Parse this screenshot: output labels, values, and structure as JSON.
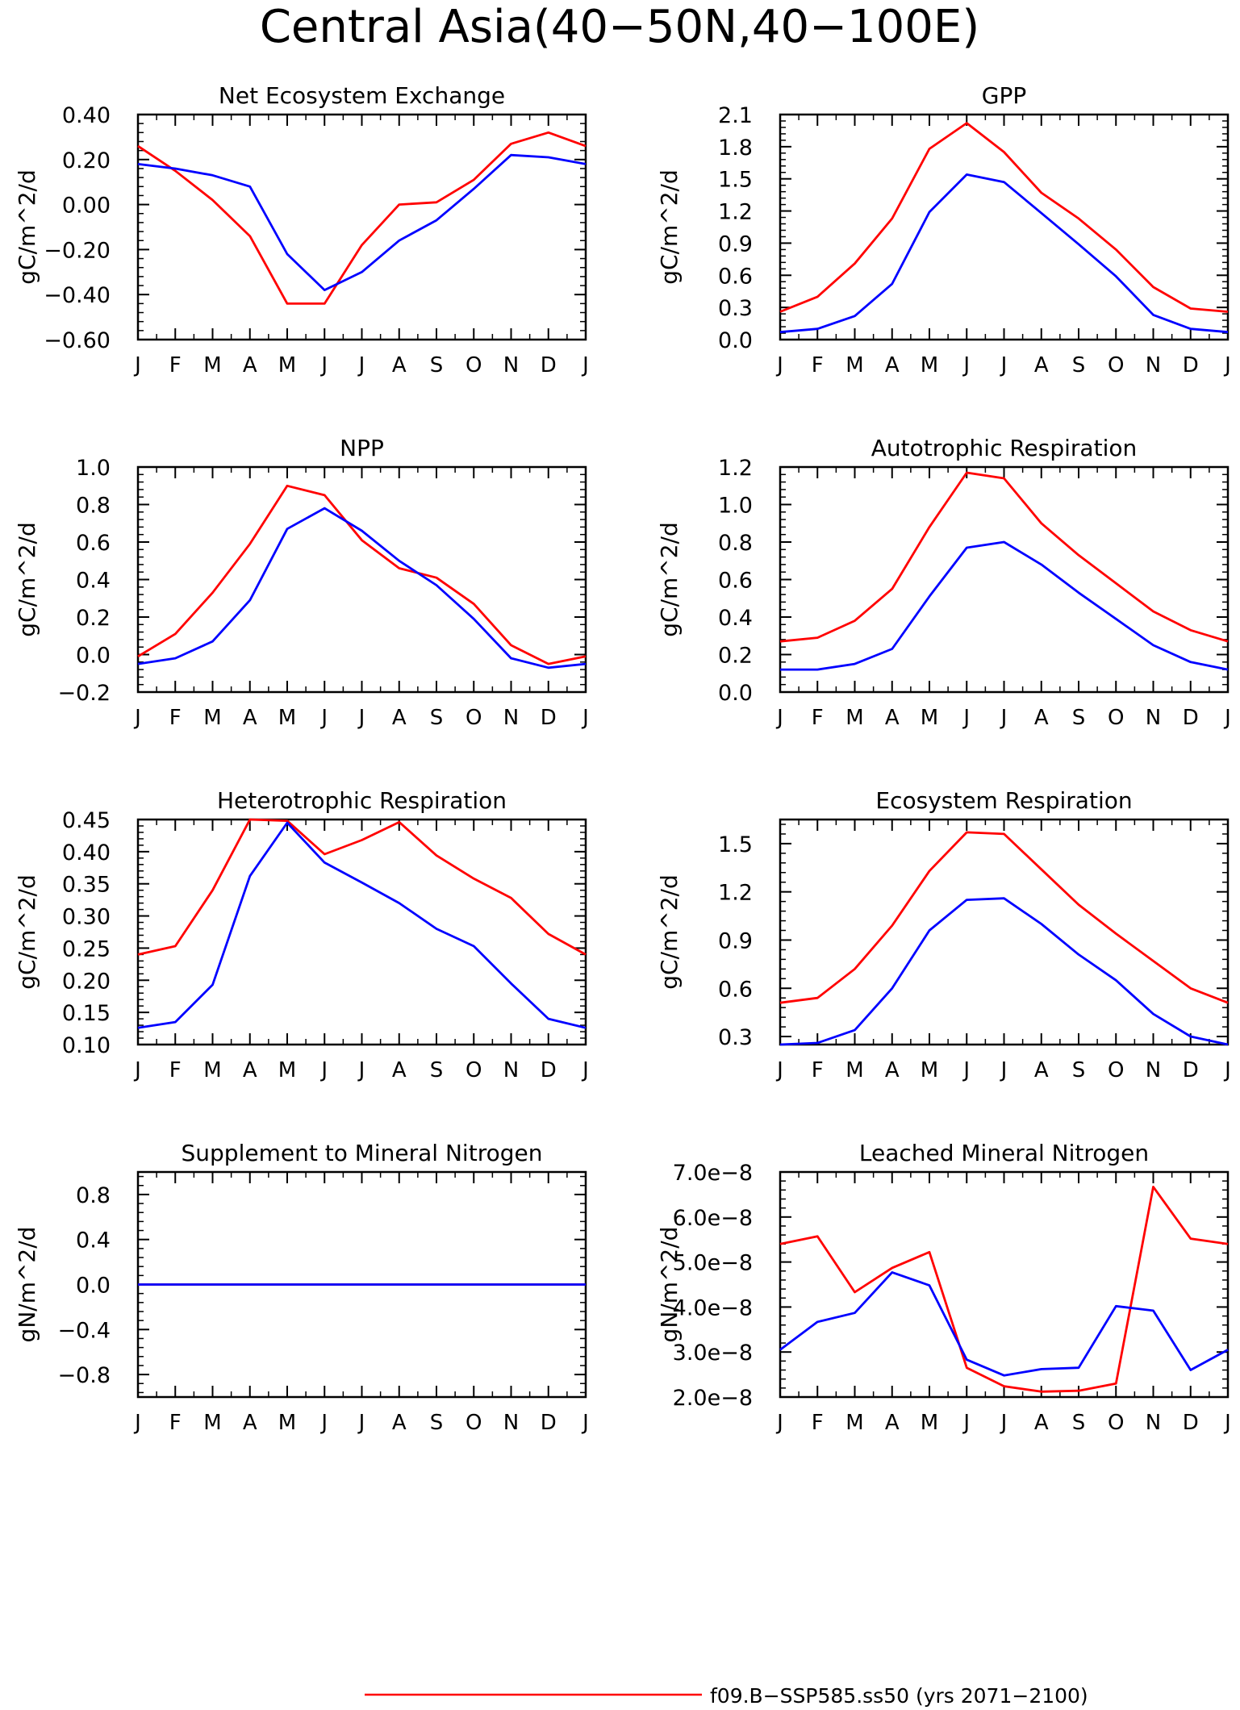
{
  "figure_title": "Central Asia(40−50N,40−100E)",
  "legend": [
    {
      "label": "f09.B−SSP585.ss50 (yrs 2071−2100)",
      "color": "#ff0000"
    }
  ],
  "colors": {
    "red": "#ff0000",
    "blue": "#0000ff"
  },
  "chart_data": [
    {
      "type": "line",
      "title": "Net Ecosystem Exchange",
      "ylabel": "gC/m^2/d",
      "categories": [
        "J",
        "F",
        "M",
        "A",
        "M",
        "J",
        "J",
        "A",
        "S",
        "O",
        "N",
        "D",
        "J"
      ],
      "ylim": [
        -0.6,
        0.4
      ],
      "yticks": [
        -0.6,
        -0.4,
        -0.2,
        0.0,
        0.2,
        0.4
      ],
      "yticklabels": [
        "−0.60",
        "−0.40",
        "−0.20",
        "0.00",
        "0.20",
        "0.40"
      ],
      "series": [
        {
          "color": "red",
          "values": [
            0.26,
            0.15,
            0.02,
            -0.14,
            -0.44,
            -0.44,
            -0.18,
            0.0,
            0.01,
            0.11,
            0.27,
            0.32,
            0.26
          ]
        },
        {
          "color": "blue",
          "values": [
            0.18,
            0.16,
            0.13,
            0.08,
            -0.22,
            -0.38,
            -0.3,
            -0.16,
            -0.07,
            0.07,
            0.22,
            0.21,
            0.18
          ]
        }
      ]
    },
    {
      "type": "line",
      "title": "GPP",
      "ylabel": "gC/m^2/d",
      "categories": [
        "J",
        "F",
        "M",
        "A",
        "M",
        "J",
        "J",
        "A",
        "S",
        "O",
        "N",
        "D",
        "J"
      ],
      "ylim": [
        0.0,
        2.1
      ],
      "yticks": [
        0.0,
        0.3,
        0.6,
        0.9,
        1.2,
        1.5,
        1.8,
        2.1
      ],
      "yticklabels": [
        "0.0",
        "0.3",
        "0.6",
        "0.9",
        "1.2",
        "1.5",
        "1.8",
        "2.1"
      ],
      "series": [
        {
          "color": "red",
          "values": [
            0.26,
            0.4,
            0.71,
            1.13,
            1.78,
            2.02,
            1.75,
            1.37,
            1.13,
            0.84,
            0.49,
            0.29,
            0.26
          ]
        },
        {
          "color": "blue",
          "values": [
            0.07,
            0.1,
            0.22,
            0.52,
            1.19,
            1.54,
            1.47,
            1.18,
            0.89,
            0.59,
            0.23,
            0.1,
            0.07
          ]
        }
      ]
    },
    {
      "type": "line",
      "title": "NPP",
      "ylabel": "gC/m^2/d",
      "categories": [
        "J",
        "F",
        "M",
        "A",
        "M",
        "J",
        "J",
        "A",
        "S",
        "O",
        "N",
        "D",
        "J"
      ],
      "ylim": [
        -0.2,
        1.0
      ],
      "yticks": [
        -0.2,
        0.0,
        0.2,
        0.4,
        0.6,
        0.8,
        1.0
      ],
      "yticklabels": [
        "−0.2",
        "0.0",
        "0.2",
        "0.4",
        "0.6",
        "0.8",
        "1.0"
      ],
      "series": [
        {
          "color": "red",
          "values": [
            -0.01,
            0.11,
            0.33,
            0.59,
            0.9,
            0.85,
            0.61,
            0.46,
            0.41,
            0.27,
            0.05,
            -0.05,
            -0.01
          ]
        },
        {
          "color": "blue",
          "values": [
            -0.05,
            -0.02,
            0.07,
            0.29,
            0.67,
            0.78,
            0.66,
            0.5,
            0.37,
            0.19,
            -0.02,
            -0.07,
            -0.05
          ]
        }
      ]
    },
    {
      "type": "line",
      "title": "Autotrophic Respiration",
      "ylabel": "gC/m^2/d",
      "categories": [
        "J",
        "F",
        "M",
        "A",
        "M",
        "J",
        "J",
        "A",
        "S",
        "O",
        "N",
        "D",
        "J"
      ],
      "ylim": [
        0.0,
        1.2
      ],
      "yticks": [
        0.0,
        0.2,
        0.4,
        0.6,
        0.8,
        1.0,
        1.2
      ],
      "yticklabels": [
        "0.0",
        "0.2",
        "0.4",
        "0.6",
        "0.8",
        "1.0",
        "1.2"
      ],
      "series": [
        {
          "color": "red",
          "values": [
            0.27,
            0.29,
            0.38,
            0.55,
            0.88,
            1.17,
            1.14,
            0.9,
            0.73,
            0.58,
            0.43,
            0.33,
            0.27
          ]
        },
        {
          "color": "blue",
          "values": [
            0.12,
            0.12,
            0.15,
            0.23,
            0.51,
            0.77,
            0.8,
            0.68,
            0.53,
            0.39,
            0.25,
            0.16,
            0.12
          ]
        }
      ]
    },
    {
      "type": "line",
      "title": "Heterotrophic Respiration",
      "ylabel": "gC/m^2/d",
      "categories": [
        "J",
        "F",
        "M",
        "A",
        "M",
        "J",
        "J",
        "A",
        "S",
        "O",
        "N",
        "D",
        "J"
      ],
      "ylim": [
        0.1,
        0.45
      ],
      "yticks": [
        0.1,
        0.15,
        0.2,
        0.25,
        0.3,
        0.35,
        0.4,
        0.45
      ],
      "yticklabels": [
        "0.10",
        "0.15",
        "0.20",
        "0.25",
        "0.30",
        "0.35",
        "0.40",
        "0.45"
      ],
      "series": [
        {
          "color": "red",
          "values": [
            0.24,
            0.253,
            0.34,
            0.45,
            0.448,
            0.396,
            0.418,
            0.446,
            0.394,
            0.358,
            0.328,
            0.272,
            0.24
          ]
        },
        {
          "color": "blue",
          "values": [
            0.126,
            0.135,
            0.193,
            0.362,
            0.445,
            0.383,
            0.352,
            0.32,
            0.28,
            0.253,
            0.195,
            0.14,
            0.126
          ]
        }
      ]
    },
    {
      "type": "line",
      "title": "Ecosystem Respiration",
      "ylabel": "gC/m^2/d",
      "categories": [
        "J",
        "F",
        "M",
        "A",
        "M",
        "J",
        "J",
        "A",
        "S",
        "O",
        "N",
        "D",
        "J"
      ],
      "ylim": [
        0.25,
        1.65
      ],
      "yticks": [
        0.3,
        0.6,
        0.9,
        1.2,
        1.5
      ],
      "yticklabels": [
        "0.3",
        "0.6",
        "0.9",
        "1.2",
        "1.5"
      ],
      "series": [
        {
          "color": "red",
          "values": [
            0.51,
            0.54,
            0.72,
            0.99,
            1.33,
            1.57,
            1.56,
            1.34,
            1.12,
            0.94,
            0.77,
            0.6,
            0.51
          ]
        },
        {
          "color": "blue",
          "values": [
            0.25,
            0.26,
            0.34,
            0.6,
            0.96,
            1.15,
            1.16,
            1.0,
            0.81,
            0.65,
            0.44,
            0.3,
            0.25
          ]
        }
      ]
    },
    {
      "type": "line",
      "title": "Supplement to Mineral Nitrogen",
      "ylabel": "gN/m^2/d",
      "categories": [
        "J",
        "F",
        "M",
        "A",
        "M",
        "J",
        "J",
        "A",
        "S",
        "O",
        "N",
        "D",
        "J"
      ],
      "ylim": [
        -1.0,
        1.0
      ],
      "yticks": [
        -0.8,
        -0.4,
        0.0,
        0.4,
        0.8
      ],
      "yticklabels": [
        "−0.8",
        "−0.4",
        "0.0",
        "0.4",
        "0.8"
      ],
      "series": [
        {
          "color": "red",
          "values": [
            0,
            0,
            0,
            0,
            0,
            0,
            0,
            0,
            0,
            0,
            0,
            0,
            0
          ]
        },
        {
          "color": "blue",
          "values": [
            0,
            0,
            0,
            0,
            0,
            0,
            0,
            0,
            0,
            0,
            0,
            0,
            0
          ]
        }
      ]
    },
    {
      "type": "line",
      "title": "Leached Mineral Nitrogen",
      "ylabel": "gN/m^2/d",
      "categories": [
        "J",
        "F",
        "M",
        "A",
        "M",
        "J",
        "J",
        "A",
        "S",
        "O",
        "N",
        "D",
        "J"
      ],
      "ylim": [
        2e-08,
        7e-08
      ],
      "yticks": [
        2e-08,
        3e-08,
        4e-08,
        5e-08,
        6e-08,
        7e-08
      ],
      "yticklabels": [
        "2.0e−8",
        "3.0e−8",
        "4.0e−8",
        "5.0e−8",
        "6.0e−8",
        "7.0e−8"
      ],
      "series": [
        {
          "color": "red",
          "values": [
            5.4e-08,
            5.57e-08,
            4.33e-08,
            4.87e-08,
            5.22e-08,
            2.65e-08,
            2.24e-08,
            2.12e-08,
            2.14e-08,
            2.3e-08,
            6.67e-08,
            5.52e-08,
            5.4e-08
          ]
        },
        {
          "color": "blue",
          "values": [
            3.05e-08,
            3.67e-08,
            3.87e-08,
            4.77e-08,
            4.48e-08,
            2.83e-08,
            2.48e-08,
            2.62e-08,
            2.65e-08,
            4.02e-08,
            3.92e-08,
            2.6e-08,
            3.05e-08
          ]
        }
      ]
    }
  ]
}
